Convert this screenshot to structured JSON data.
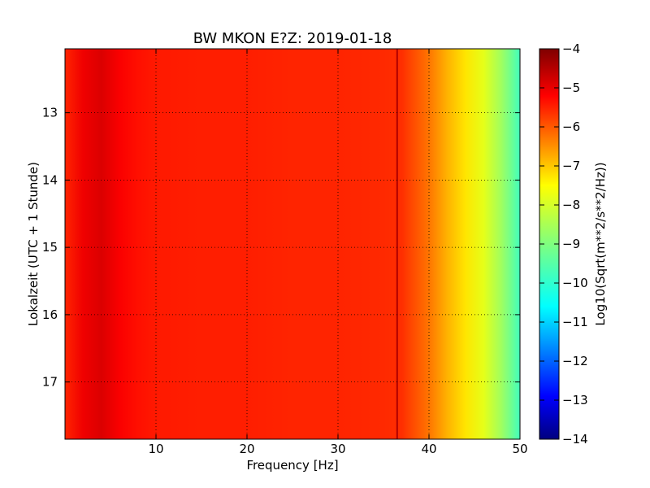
{
  "chart_data": {
    "type": "heatmap",
    "title": "BW MKON E?Z: 2019-01-18",
    "xlabel": "Frequency [Hz]",
    "ylabel": "Lokalzeit (UTC + 1 Stunde)",
    "xlim": [
      0,
      50
    ],
    "ylim": [
      17.85,
      12.05
    ],
    "xticks": [
      10,
      20,
      30,
      40,
      50
    ],
    "xtick_labels": [
      "10",
      "20",
      "30",
      "40",
      "50"
    ],
    "yticks": [
      13,
      14,
      15,
      16,
      17
    ],
    "ytick_labels": [
      "13",
      "14",
      "15",
      "16",
      "17"
    ],
    "grid": true,
    "colormap": "jet",
    "colorbar": {
      "label": "Log10(Sqrt(m**2/s**2/Hz))",
      "range": [
        -14,
        -4
      ],
      "ticks": [
        -4,
        -5,
        -6,
        -7,
        -8,
        -9,
        -10,
        -11,
        -12,
        -13,
        -14
      ],
      "tick_labels": [
        "−4",
        "−5",
        "−6",
        "−7",
        "−8",
        "−9",
        "−10",
        "−11",
        "−12",
        "−13",
        "−14"
      ]
    },
    "spectrum_profile": {
      "frequency_hz": [
        0,
        2,
        4,
        6,
        8,
        10,
        15,
        20,
        25,
        30,
        35,
        37,
        40,
        42,
        44,
        46,
        48,
        50
      ],
      "log10_amplitude": [
        -5.6,
        -5.1,
        -4.9,
        -5.2,
        -5.4,
        -5.5,
        -5.55,
        -5.55,
        -5.6,
        -5.6,
        -5.65,
        -5.7,
        -6.4,
        -7.0,
        -7.5,
        -8.0,
        -8.7,
        -9.6
      ]
    },
    "features": [
      {
        "kind": "spectral-line",
        "frequency_hz": 36.5
      }
    ]
  },
  "colors": {
    "jet": [
      "#00007f",
      "#0000ff",
      "#007fff",
      "#00ffff",
      "#7fff7f",
      "#ffff00",
      "#ff7f00",
      "#ff0000",
      "#7f0000"
    ]
  }
}
